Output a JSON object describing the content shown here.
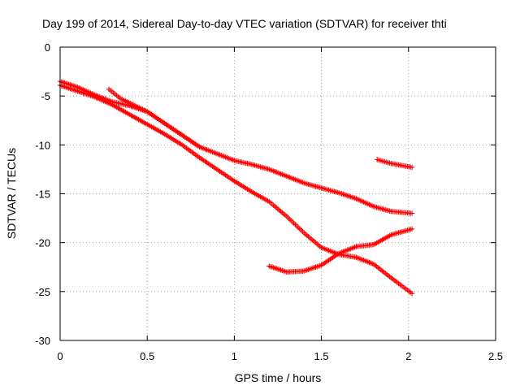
{
  "chart_data": {
    "type": "scatter",
    "title": "Day 199 of 2014, Sidereal Day-to-day VTEC variation (SDTVAR) for receiver thti",
    "xlabel": "GPS time / hours",
    "ylabel": "SDTVAR / TECUs",
    "xlim": [
      0,
      2.5
    ],
    "ylim": [
      -30,
      0
    ],
    "xticks": [
      0,
      0.5,
      1,
      1.5,
      2,
      2.5
    ],
    "xtick_labels": [
      "0",
      "0.5",
      "1",
      "1.5",
      "2",
      "2.5"
    ],
    "yticks": [
      0,
      -5,
      -10,
      -15,
      -20,
      -25,
      -30
    ],
    "ytick_labels": [
      "0",
      "-5",
      "-10",
      "-15",
      "-20",
      "-25",
      "-30"
    ],
    "grid": true,
    "marker": "plus",
    "color": "#ff0000",
    "series": [
      {
        "x": [
          0.0,
          0.1,
          0.2,
          0.3,
          0.4,
          0.5,
          0.6,
          0.7,
          0.8,
          0.9,
          1.0,
          1.1,
          1.2,
          1.3,
          1.4,
          1.5,
          1.6,
          1.7,
          1.8,
          1.9,
          2.02
        ],
        "y": [
          -3.5,
          -4.1,
          -4.9,
          -5.6,
          -6.0,
          -6.6,
          -7.8,
          -9.0,
          -10.2,
          -10.9,
          -11.6,
          -12.0,
          -12.5,
          -13.2,
          -13.9,
          -14.4,
          -14.9,
          -15.5,
          -16.3,
          -16.8,
          -17.0
        ]
      },
      {
        "x": [
          0.0,
          0.1,
          0.2,
          0.3,
          0.4,
          0.5,
          0.6,
          0.7,
          0.8,
          0.9,
          1.0,
          1.1,
          1.2,
          1.3,
          1.4,
          1.5,
          1.6,
          1.7,
          1.8,
          1.9,
          2.02
        ],
        "y": [
          -3.9,
          -4.5,
          -5.1,
          -5.9,
          -6.9,
          -7.9,
          -8.9,
          -10.0,
          -11.3,
          -12.5,
          -13.7,
          -14.8,
          -15.8,
          -17.3,
          -19.0,
          -20.5,
          -21.2,
          -21.5,
          -22.2,
          -23.6,
          -25.2
        ]
      },
      {
        "x": [
          0.28,
          0.35,
          0.42,
          0.5,
          0.6,
          0.7,
          0.8
        ],
        "y": [
          -4.3,
          -5.3,
          -5.9,
          -6.6,
          -7.8,
          -9.0,
          -10.2
        ]
      },
      {
        "x": [
          1.2,
          1.3,
          1.4,
          1.5,
          1.6,
          1.7,
          1.8,
          1.9,
          2.02
        ],
        "y": [
          -22.4,
          -23.0,
          -22.9,
          -22.3,
          -21.1,
          -20.4,
          -20.2,
          -19.2,
          -18.6
        ]
      },
      {
        "x": [
          1.82,
          1.9,
          1.96,
          2.02
        ],
        "y": [
          -11.5,
          -11.9,
          -12.1,
          -12.3
        ]
      }
    ]
  }
}
